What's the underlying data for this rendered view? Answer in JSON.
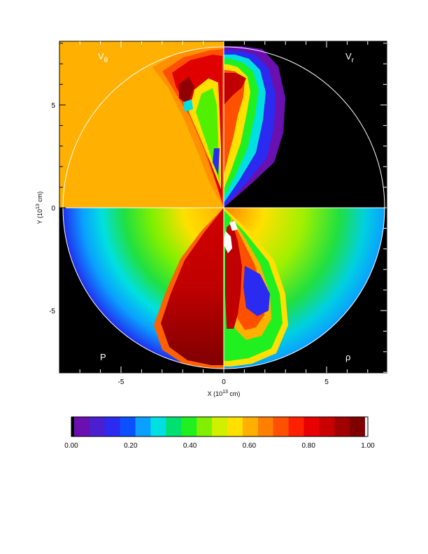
{
  "chart_data": {
    "type": "heatmap",
    "xlabel": "X (10",
    "xlabel_exp": "13",
    "xlabel_unit": " cm)",
    "ylabel": "Y (10",
    "ylabel_exp": "13",
    "ylabel_unit": " cm)",
    "xlim": [
      -8,
      8
    ],
    "ylim": [
      -8,
      8
    ],
    "x_ticks": [
      -5,
      0,
      5
    ],
    "y_ticks": [
      -5,
      0,
      5
    ],
    "x_tick_labels": [
      "-5",
      "0",
      "5"
    ],
    "y_tick_labels": [
      "-5",
      "0",
      "5"
    ],
    "domain_radius": 7.8,
    "quadrants": [
      {
        "name": "quad-v-theta",
        "label": "V",
        "sub": "θ",
        "position": "top-left",
        "label_color": "#ffffff"
      },
      {
        "name": "quad-v-r",
        "label": "V",
        "sub": "r",
        "position": "top-right",
        "label_color": "#ffffff"
      },
      {
        "name": "quad-pressure",
        "label": "P",
        "sub": "",
        "position": "bottom-left",
        "label_color": "#ffffff"
      },
      {
        "name": "quad-density",
        "label": "ρ",
        "sub": "",
        "position": "bottom-right",
        "label_color": "#ffffff"
      }
    ],
    "colorbar": {
      "range": [
        0,
        1
      ],
      "tick_values": [
        0.0,
        0.2,
        0.4,
        0.6,
        0.8,
        1.0
      ],
      "tick_labels": [
        "0.00",
        "0.20",
        "0.40",
        "0.60",
        "0.80",
        "1.00"
      ],
      "colors": [
        "#000000",
        "#6a0fb0",
        "#4a1fd0",
        "#2a2af0",
        "#0a50ff",
        "#0aa0ff",
        "#00e0e0",
        "#00e070",
        "#20f020",
        "#80f000",
        "#d0f000",
        "#ffe000",
        "#ffb000",
        "#ff8000",
        "#ff5000",
        "#ff2000",
        "#e80000",
        "#c80000",
        "#a00000",
        "#800000",
        "#ffffff"
      ]
    }
  }
}
